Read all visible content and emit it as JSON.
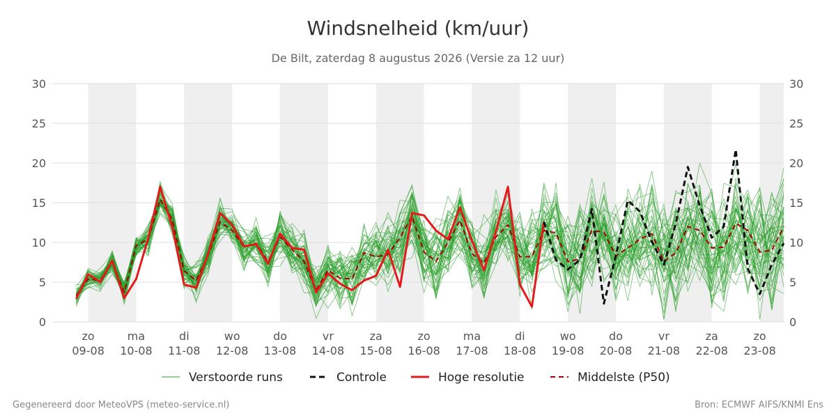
{
  "chart_data": {
    "type": "line",
    "title": "Windsnelheid (km/uur)",
    "subtitle": "De Bilt, zaterdag  8 augustus 2026 (Versie za 12 uur)",
    "ylim": [
      0,
      30
    ],
    "yticks": [
      0,
      5,
      10,
      15,
      20,
      25,
      30
    ],
    "xlim": [
      -0.75,
      14.5
    ],
    "day_labels": [
      {
        "day": "zo",
        "date": "09-08"
      },
      {
        "day": "ma",
        "date": "10-08"
      },
      {
        "day": "di",
        "date": "11-08"
      },
      {
        "day": "wo",
        "date": "12-08"
      },
      {
        "day": "do",
        "date": "13-08"
      },
      {
        "day": "vr",
        "date": "14-08"
      },
      {
        "day": "za",
        "date": "15-08"
      },
      {
        "day": "zo",
        "date": "16-08"
      },
      {
        "day": "ma",
        "date": "17-08"
      },
      {
        "day": "di",
        "date": "18-08"
      },
      {
        "day": "wo",
        "date": "19-08"
      },
      {
        "day": "do",
        "date": "20-08"
      },
      {
        "day": "vr",
        "date": "21-08"
      },
      {
        "day": "za",
        "date": "22-08"
      },
      {
        "day": "zo",
        "date": "23-08"
      }
    ],
    "shaded_ranges": [
      [
        0,
        1
      ],
      [
        2,
        3
      ],
      [
        4,
        5
      ],
      [
        6,
        7
      ],
      [
        8,
        9
      ],
      [
        10,
        11
      ],
      [
        12,
        13
      ],
      [
        14,
        14.5
      ]
    ],
    "colors": {
      "ensemble": "#2ca02c",
      "control": "#111111",
      "hires": "#e31a1c",
      "median": "#a00000",
      "shade": "#efefef",
      "grid": "#dddddd"
    },
    "legend": {
      "ensemble": "Verstoorde runs",
      "control": "Controle",
      "hires": "Hoge resolutie",
      "median": "Middelste (P50)"
    },
    "series": [
      {
        "key": "hires",
        "x": [
          -0.25,
          0,
          0.25,
          0.5,
          0.75,
          1,
          1.25,
          1.5,
          1.75,
          2,
          2.25,
          2.5,
          2.75,
          3,
          3.25,
          3.5,
          3.75,
          4,
          4.25,
          4.5,
          4.75,
          5,
          5.25,
          5.5,
          5.75,
          6,
          6.25,
          6.5,
          6.75,
          7,
          7.25,
          7.5,
          7.75,
          8,
          8.25,
          8.5,
          8.75,
          9,
          9.25,
          9.5
        ],
        "values": [
          2.9,
          6.0,
          5.0,
          7.7,
          3.0,
          5.4,
          10.5,
          17.0,
          12.0,
          4.7,
          4.3,
          8.6,
          13.7,
          12.2,
          9.5,
          9.8,
          7.3,
          11.1,
          9.3,
          9.1,
          3.7,
          6.1,
          4.8,
          4.0,
          5.2,
          5.8,
          9.1,
          4.4,
          13.7,
          13.4,
          11.5,
          10.4,
          14.4,
          10.2,
          6.5,
          11.4,
          17.0,
          4.7,
          1.9,
          12.6
        ]
      },
      {
        "key": "control",
        "x": [
          9.5,
          9.75,
          10,
          10.25,
          10.5,
          10.75,
          11,
          11.25,
          11.5,
          11.75,
          12,
          12.25,
          12.5,
          12.75,
          13,
          13.25,
          13.5,
          13.75,
          14,
          14.25,
          14.5
        ],
        "values": [
          12.6,
          7.8,
          6.6,
          7.8,
          14.2,
          2.3,
          8.3,
          15.3,
          13.9,
          10.1,
          7.2,
          12.4,
          19.5,
          14.6,
          10.6,
          12.0,
          21.7,
          6.7,
          3.5,
          7.2,
          9.9
        ]
      },
      {
        "key": "median",
        "x": [
          -0.25,
          0,
          0.25,
          0.5,
          0.75,
          1,
          1.25,
          1.5,
          1.75,
          2,
          2.25,
          2.5,
          2.75,
          3,
          3.25,
          3.5,
          3.75,
          4,
          4.25,
          4.5,
          4.75,
          5,
          5.25,
          5.5,
          5.75,
          6,
          6.25,
          6.5,
          6.75,
          7,
          7.25,
          7.5,
          7.75,
          8,
          8.25,
          8.5,
          8.75,
          9,
          9.25,
          9.5,
          9.75,
          10,
          10.25,
          10.5,
          10.75,
          11,
          11.25,
          11.5,
          11.75,
          12,
          12.25,
          12.5,
          12.75,
          13,
          13.25,
          13.5,
          13.75,
          14,
          14.25,
          14.5
        ],
        "values": [
          3.3,
          5.4,
          5.2,
          7.6,
          3.7,
          9.6,
          10.4,
          15.4,
          12.9,
          6.4,
          5.2,
          8.4,
          12.6,
          11.5,
          9.4,
          9.9,
          7.6,
          10.7,
          9.1,
          7.6,
          4.0,
          6.5,
          5.5,
          5.4,
          8.7,
          8.2,
          8.5,
          10.6,
          13.3,
          8.8,
          7.6,
          10.0,
          12.8,
          8.6,
          7.4,
          10.7,
          12.2,
          8.2,
          8.2,
          11.5,
          11.2,
          7.6,
          7.9,
          11.5,
          11.3,
          8.3,
          9.3,
          10.4,
          11.1,
          7.6,
          8.7,
          12.0,
          11.5,
          9.3,
          9.4,
          12.4,
          11.5,
          8.8,
          9.0,
          12.0
        ]
      }
    ]
  },
  "footer": {
    "left": "Gegenereerd door MeteoVPS (meteo-service.nl)",
    "right": "Bron: ECMWF AIFS/KNMI Ens"
  }
}
